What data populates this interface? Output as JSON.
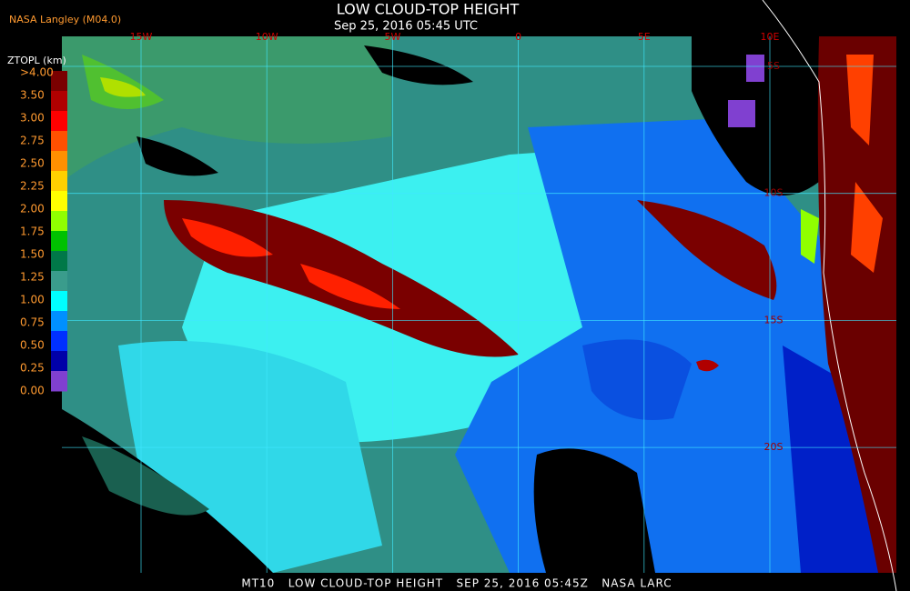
{
  "header": {
    "org": "NASA Langley (M04.0)",
    "title": "LOW CLOUD-TOP HEIGHT",
    "date": "Sep 25, 2016 05:45 UTC"
  },
  "legend": {
    "title": "ZTOPL (km)",
    "labels": [
      ">4.00",
      "3.50",
      "3.00",
      "2.75",
      "2.50",
      "2.25",
      "2.00",
      "1.75",
      "1.50",
      "1.25",
      "1.00",
      "0.75",
      "0.50",
      "0.25",
      "0.00"
    ],
    "colors": [
      "#7a0000",
      "#b00000",
      "#ff0000",
      "#ff5000",
      "#ff9000",
      "#ffd000",
      "#ffff00",
      "#90ff00",
      "#00c000",
      "#007848",
      "#3a9c8c",
      "#00ffff",
      "#0090ff",
      "#0030ff",
      "#0000a8",
      "#8040d0"
    ]
  },
  "map": {
    "lon_labels": [
      "15W",
      "10W",
      "5W",
      "0",
      "5E",
      "10E"
    ],
    "lat_labels": [
      "5S",
      "10S",
      "15S",
      "20S"
    ]
  },
  "footer": "MT10   LOW CLOUD-TOP HEIGHT   SEP 25, 2016 05:45Z   NASA LARC"
}
